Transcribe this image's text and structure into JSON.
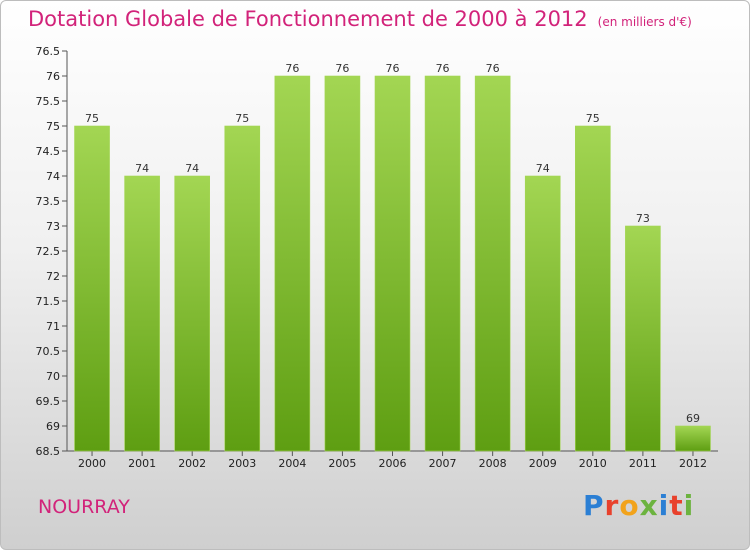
{
  "header": {
    "title": "Dotation Globale de Fonctionnement de 2000 à 2012",
    "unit": "(en milliers d'€)"
  },
  "footer": {
    "commune": "NOURRAY",
    "logo": "Proxiti",
    "logo_colors": [
      "#2b7fd4",
      "#e8412c",
      "#f2a31b",
      "#6cb33f",
      "#2b7fd4",
      "#e8412c",
      "#6cb33f"
    ]
  },
  "colors": {
    "title": "#d2237a",
    "bar_top": "#a3d653",
    "bar_bottom": "#5e9e12",
    "axis": "#555555"
  },
  "chart_data": {
    "type": "bar",
    "title": "Dotation Globale de Fonctionnement de 2000 à 2012",
    "xlabel": "",
    "ylabel": "",
    "categories": [
      "2000",
      "2001",
      "2002",
      "2003",
      "2004",
      "2005",
      "2006",
      "2007",
      "2008",
      "2009",
      "2010",
      "2011",
      "2012"
    ],
    "values": [
      75,
      74,
      74,
      75,
      76,
      76,
      76,
      76,
      76,
      74,
      75,
      73,
      69
    ],
    "ylim": [
      68.5,
      76.5
    ],
    "yticks": [
      "68.5",
      "69",
      "69.5",
      "70",
      "70.5",
      "71",
      "71.5",
      "72",
      "72.5",
      "73",
      "73.5",
      "74",
      "74.5",
      "75",
      "75.5",
      "76",
      "76.5"
    ],
    "grid": false,
    "legend": "none"
  }
}
